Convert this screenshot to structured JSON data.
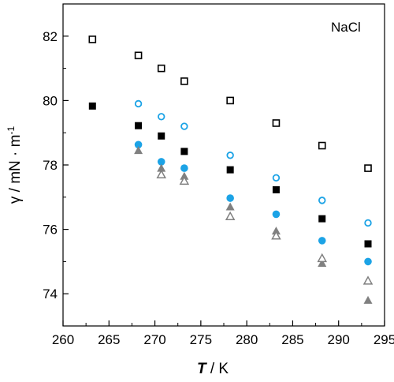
{
  "chart_data": {
    "type": "scatter",
    "title": "",
    "annotation": "NaCl",
    "xlabel_var": "T",
    "xlabel_unit": " / K",
    "ylabel_main": "γ / mN · m",
    "ylabel_exp": "-1",
    "xlim": [
      260,
      295
    ],
    "ylim": [
      73,
      83
    ],
    "xticks": [
      260,
      265,
      270,
      275,
      280,
      285,
      290,
      295
    ],
    "yticks": [
      74,
      76,
      78,
      80,
      82
    ],
    "grid": false,
    "colors": {
      "black": "#000000",
      "blue": "#1ca3e6",
      "gray": "#808080"
    },
    "series": [
      {
        "marker": "square-open",
        "color": "#000000",
        "x": [
          263.2,
          268.2,
          270.7,
          273.2,
          278.2,
          283.2,
          288.2,
          293.2
        ],
        "y": [
          81.9,
          81.4,
          81.0,
          80.6,
          80.0,
          79.3,
          78.6,
          77.9
        ]
      },
      {
        "marker": "square-filled",
        "color": "#000000",
        "x": [
          263.2,
          268.2,
          270.7,
          273.2,
          278.2,
          283.2,
          288.2,
          293.2
        ],
        "y": [
          79.83,
          79.22,
          78.9,
          78.42,
          77.85,
          77.23,
          76.33,
          75.55
        ]
      },
      {
        "marker": "circle-open",
        "color": "#1ca3e6",
        "x": [
          268.2,
          270.7,
          273.2,
          278.2,
          283.2,
          288.2,
          293.2
        ],
        "y": [
          79.9,
          79.5,
          79.2,
          78.3,
          77.6,
          76.9,
          76.2
        ]
      },
      {
        "marker": "circle-filled",
        "color": "#1ca3e6",
        "x": [
          268.2,
          270.7,
          273.2,
          278.2,
          283.2,
          288.2,
          293.2
        ],
        "y": [
          78.63,
          78.1,
          77.9,
          76.97,
          76.47,
          75.65,
          75.0
        ]
      },
      {
        "marker": "triangle-filled",
        "color": "#808080",
        "x": [
          268.2,
          270.7,
          273.2,
          278.2,
          283.2,
          288.2,
          293.2
        ],
        "y": [
          78.45,
          77.9,
          77.65,
          76.7,
          75.95,
          74.95,
          73.8
        ]
      },
      {
        "marker": "triangle-open",
        "color": "#808080",
        "x": [
          270.7,
          273.2,
          278.2,
          283.2,
          288.2,
          293.2
        ],
        "y": [
          77.7,
          77.5,
          76.4,
          75.8,
          75.1,
          74.4
        ]
      }
    ]
  }
}
